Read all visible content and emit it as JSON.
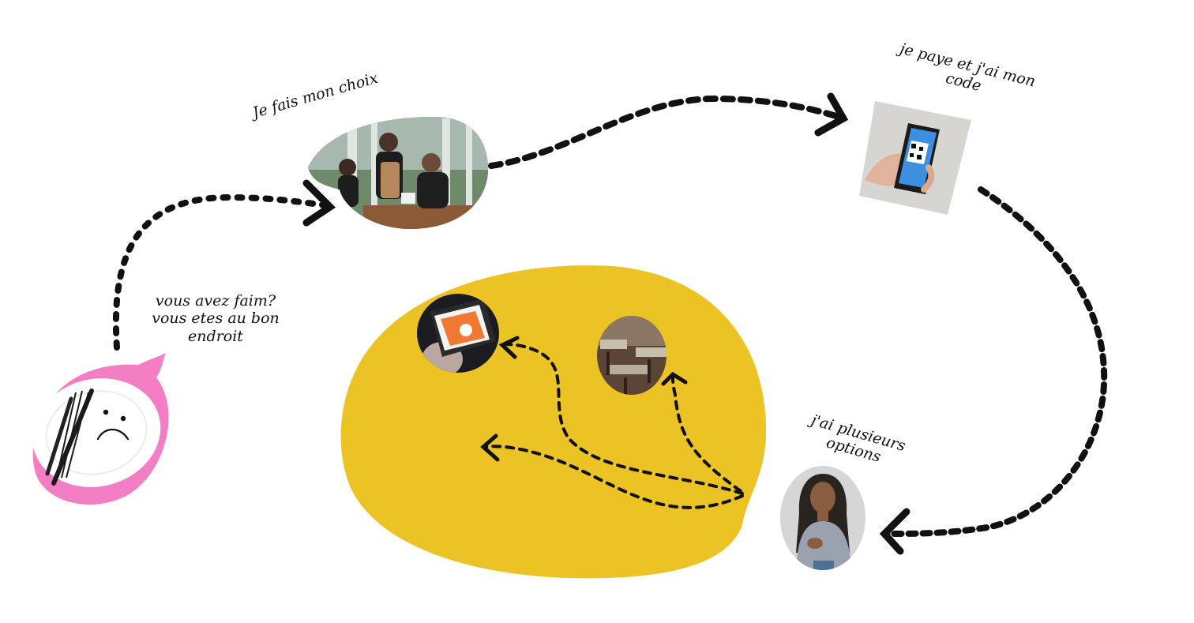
{
  "steps": {
    "hungry": {
      "line1": "vous avez faim?",
      "line2": "vous etes au bon",
      "line3": "endroit"
    },
    "choose": {
      "label": "Je fais mon choix"
    },
    "pay": {
      "line1": "je paye et j'ai mon",
      "line2": "code"
    },
    "options": {
      "line1": "j'ai plusieurs",
      "line2": "options"
    }
  },
  "colors": {
    "arrow": "#111111",
    "blob": "#ebc324",
    "plate_pink": "#f47ec4",
    "plate_white": "#ffffff",
    "photo_grey": "#cfcfcf"
  },
  "icons": {
    "sad_plate": "sad-plate-icon",
    "qr_phone": "qr-phone-icon",
    "ordering_app": "phone-app-icon",
    "restaurant": "restaurant-interior-icon",
    "person": "person-thinking-icon",
    "waiter": "waiter-table-icon"
  }
}
